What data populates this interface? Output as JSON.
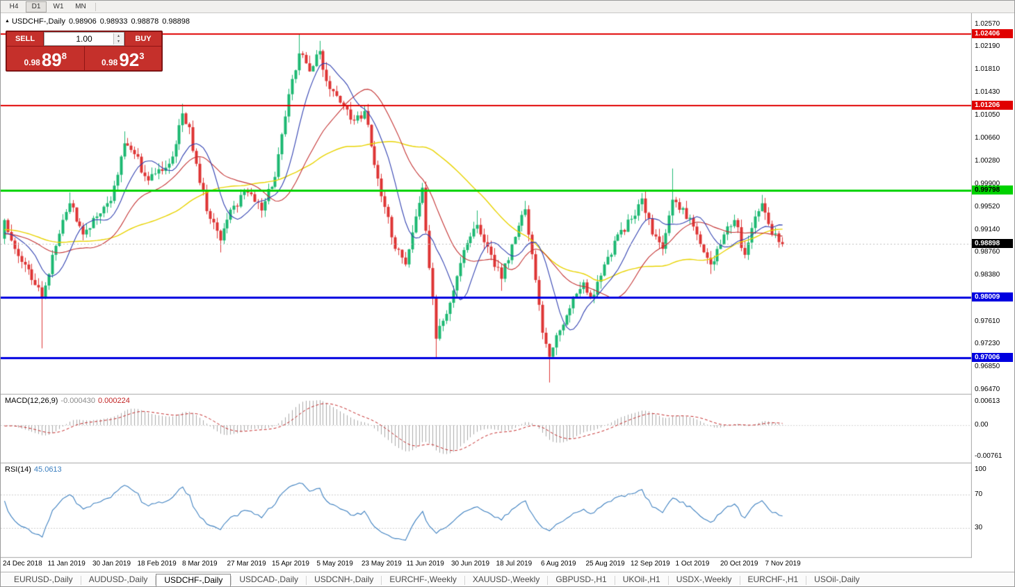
{
  "toolbar": {
    "timeframes": [
      {
        "label": "H4",
        "active": false
      },
      {
        "label": "D1",
        "active": true
      },
      {
        "label": "W1",
        "active": false
      },
      {
        "label": "MN",
        "active": false
      }
    ]
  },
  "chart": {
    "collapse_icon": "▲",
    "symbol": "USDCHF-,Daily",
    "ohlc": {
      "open": "0.98906",
      "high": "0.98933",
      "low": "0.98878",
      "close": "0.98898"
    }
  },
  "trade_panel": {
    "sell_label": "SELL",
    "buy_label": "BUY",
    "volume": "1.00",
    "sell_price": {
      "prefix": "0.98",
      "pips": "89",
      "pipette": "8"
    },
    "buy_price": {
      "prefix": "0.98",
      "pips": "92",
      "pipette": "3"
    }
  },
  "indicators": {
    "macd": {
      "name": "MACD(12,26,9)",
      "value1": "-0.000430",
      "value2": "0.000224",
      "axis": [
        "0.00613",
        "0.00",
        "-0.00761"
      ],
      "params": [
        12,
        26,
        9
      ]
    },
    "rsi": {
      "name": "RSI(14)",
      "value": "45.0613",
      "axis": [
        "100",
        "70",
        "30"
      ],
      "period": 14,
      "levels": [
        70,
        30
      ]
    }
  },
  "chart_data": {
    "type": "candlestick",
    "symbol": "USDCHF",
    "period": "Daily",
    "title": "USDCHF-,Daily 0.98906 0.98933 0.98878 0.98898",
    "price_range": {
      "max": 1.0274,
      "min": 0.964
    },
    "y_ticks": [
      "1.02570",
      "1.02190",
      "1.01810",
      "1.01430",
      "1.01050",
      "1.00660",
      "1.00280",
      "0.99900",
      "0.99520",
      "0.99140",
      "0.98760",
      "0.98380",
      "0.97610",
      "0.97230",
      "0.96850",
      "0.96470"
    ],
    "x_labels": [
      "24 Dec 2018",
      "11 Jan 2019",
      "30 Jan 2019",
      "18 Feb 2019",
      "8 Mar 2019",
      "27 Mar 2019",
      "15 Apr 2019",
      "5 May 2019",
      "23 May 2019",
      "11 Jun 2019",
      "30 Jun 2019",
      "18 Jul 2019",
      "6 Aug 2019",
      "25 Aug 2019",
      "12 Sep 2019",
      "1 Oct 2019",
      "20 Oct 2019",
      "7 Nov 2019"
    ],
    "levels": [
      {
        "role": "resistance",
        "price": 1.02406,
        "label": "1.02406",
        "color": "#E00000",
        "width": 2,
        "style": "solid",
        "text_color": "#FFFFFF"
      },
      {
        "role": "resistance",
        "price": 1.01206,
        "label": "1.01206",
        "color": "#E00000",
        "width": 2,
        "style": "solid",
        "text_color": "#FFFFFF"
      },
      {
        "role": "resistance",
        "price": 0.99798,
        "label": "0.99798",
        "color": "#00D200",
        "width": 3,
        "style": "solid",
        "text_color": "#000000"
      },
      {
        "role": "support",
        "price": 0.98009,
        "label": "0.98009",
        "color": "#0000E0",
        "width": 3,
        "style": "solid",
        "text_color": "#FFFFFF"
      },
      {
        "role": "support",
        "price": 0.97006,
        "label": "0.97006",
        "color": "#0000E0",
        "width": 3,
        "style": "solid",
        "text_color": "#FFFFFF"
      },
      {
        "role": "current",
        "price": 0.98898,
        "label": "0.98898",
        "color": "#BDBDBD",
        "width": 1,
        "style": "dashed",
        "tag_bg": "#000000",
        "text_color": "#FFFFFF"
      }
    ],
    "anchors": [
      [
        0,
        0.993,
        null,
        null
      ],
      [
        4,
        0.987,
        null,
        null
      ],
      [
        8,
        0.983,
        null,
        null
      ],
      [
        11,
        0.98,
        null,
        0.9716
      ],
      [
        14,
        0.9872,
        null,
        null
      ],
      [
        19,
        0.9958,
        0.9976,
        null
      ],
      [
        23,
        0.9906,
        null,
        null
      ],
      [
        27,
        0.9936,
        null,
        null
      ],
      [
        31,
        0.9962,
        null,
        null
      ],
      [
        35,
        1.0058,
        1.0078,
        null
      ],
      [
        38,
        1.004,
        null,
        null
      ],
      [
        42,
        0.9996,
        null,
        null
      ],
      [
        46,
        1.0012,
        null,
        null
      ],
      [
        49,
        1.0036,
        null,
        null
      ],
      [
        52,
        1.0108,
        1.0124,
        null
      ],
      [
        54,
        1.0085,
        null,
        null
      ],
      [
        57,
        0.9992,
        null,
        null
      ],
      [
        60,
        0.9932,
        null,
        null
      ],
      [
        63,
        0.9896,
        null,
        0.9876
      ],
      [
        67,
        0.9954,
        null,
        null
      ],
      [
        71,
        0.9976,
        null,
        null
      ],
      [
        75,
        0.9946,
        null,
        null
      ],
      [
        79,
        1.0002,
        null,
        null
      ],
      [
        83,
        1.014,
        null,
        null
      ],
      [
        86,
        1.0208,
        1.024,
        null
      ],
      [
        89,
        1.0178,
        null,
        null
      ],
      [
        92,
        1.0212,
        1.0229,
        null
      ],
      [
        94,
        1.0162,
        null,
        null
      ],
      [
        98,
        1.0126,
        null,
        null
      ],
      [
        102,
        1.0096,
        null,
        null
      ],
      [
        105,
        1.0112,
        null,
        null
      ],
      [
        108,
        1.0022,
        null,
        null
      ],
      [
        111,
        0.9952,
        null,
        null
      ],
      [
        114,
        0.9882,
        null,
        null
      ],
      [
        117,
        0.9856,
        null,
        null
      ],
      [
        120,
        0.9936,
        null,
        null
      ],
      [
        122,
        0.9984,
        0.9992,
        null
      ],
      [
        124,
        0.985,
        null,
        null
      ],
      [
        126,
        0.9732,
        null,
        0.97
      ],
      [
        128,
        0.9762,
        null,
        null
      ],
      [
        130,
        0.9792,
        null,
        null
      ],
      [
        134,
        0.988,
        null,
        null
      ],
      [
        138,
        0.9922,
        0.9946,
        null
      ],
      [
        142,
        0.9872,
        null,
        null
      ],
      [
        145,
        0.9832,
        null,
        0.9812
      ],
      [
        149,
        0.9902,
        null,
        null
      ],
      [
        152,
        0.9948,
        0.9962,
        null
      ],
      [
        155,
        0.983,
        null,
        null
      ],
      [
        157,
        0.9742,
        null,
        null
      ],
      [
        159,
        0.9702,
        null,
        0.9659
      ],
      [
        162,
        0.9746,
        null,
        null
      ],
      [
        166,
        0.9802,
        null,
        null
      ],
      [
        169,
        0.9826,
        null,
        null
      ],
      [
        171,
        0.98,
        null,
        null
      ],
      [
        175,
        0.9856,
        null,
        null
      ],
      [
        179,
        0.9906,
        null,
        null
      ],
      [
        183,
        0.9932,
        null,
        null
      ],
      [
        186,
        0.9966,
        null,
        null
      ],
      [
        189,
        0.9906,
        null,
        null
      ],
      [
        192,
        0.9882,
        null,
        null
      ],
      [
        195,
        0.9964,
        1.0016,
        null
      ],
      [
        198,
        0.995,
        null,
        null
      ],
      [
        202,
        0.9906,
        null,
        null
      ],
      [
        206,
        0.9856,
        null,
        0.984
      ],
      [
        210,
        0.9906,
        null,
        null
      ],
      [
        213,
        0.993,
        null,
        null
      ],
      [
        216,
        0.9872,
        null,
        null
      ],
      [
        219,
        0.9936,
        null,
        null
      ],
      [
        221,
        0.9958,
        0.9972,
        null
      ],
      [
        224,
        0.9906,
        null,
        null
      ],
      [
        227,
        0.98898,
        null,
        null
      ]
    ],
    "moving_averages": [
      {
        "period": 10,
        "color": "#2F3FB0"
      },
      {
        "period": 25,
        "color": "#C33030"
      },
      {
        "period": 50,
        "color": "#E8D300"
      }
    ],
    "style": {
      "up_color": "#1CB872",
      "down_color": "#DE3434",
      "macd_hist": "#A8A8A8",
      "macd_signal": "#C22525",
      "rsi_line": "#3A7EBF",
      "grid": "#C8C8C8"
    }
  },
  "tabs": [
    {
      "label": "EURUSD-,Daily",
      "active": false
    },
    {
      "label": "AUDUSD-,Daily",
      "active": false
    },
    {
      "label": "USDCHF-,Daily",
      "active": true
    },
    {
      "label": "USDCAD-,Daily",
      "active": false
    },
    {
      "label": "USDCNH-,Daily",
      "active": false
    },
    {
      "label": "EURCHF-,Weekly",
      "active": false
    },
    {
      "label": "XAUUSD-,Weekly",
      "active": false
    },
    {
      "label": "GBPUSD-,H1",
      "active": false
    },
    {
      "label": "UKOil-,H1",
      "active": false
    },
    {
      "label": "USDX-,Weekly",
      "active": false
    },
    {
      "label": "EURCHF-,H1",
      "active": false
    },
    {
      "label": "USOil-,Daily",
      "active": false
    }
  ]
}
